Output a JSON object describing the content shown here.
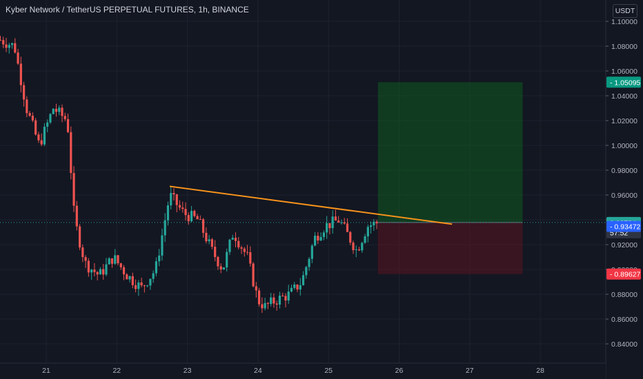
{
  "header": {
    "title": "Kyber Network / TetherUS PERPETUAL FUTURES, 1h, BINANCE",
    "currency": "USDT"
  },
  "chart_data": {
    "type": "candlestick",
    "y_ticks": [
      "1.10000",
      "1.08000",
      "1.06000",
      "1.04000",
      "1.02000",
      "1.00000",
      "0.98000",
      "0.96000",
      "0.94000",
      "0.92000",
      "0.90000",
      "0.88000",
      "0.86000",
      "0.84000"
    ],
    "y_tick_values": [
      1.1,
      1.08,
      1.06,
      1.04,
      1.02,
      1.0,
      0.98,
      0.96,
      0.94,
      0.92,
      0.9,
      0.88,
      0.86,
      0.84
    ],
    "ylim": [
      0.8325,
      1.1025
    ],
    "x_ticks": [
      "21",
      "22",
      "23",
      "24",
      "25",
      "26",
      "27",
      "28"
    ],
    "x_tick_days": [
      21,
      22,
      23,
      24,
      25,
      26,
      27,
      28
    ],
    "xlim": [
      20.35,
      28.8
    ],
    "price_tags": [
      {
        "label": "1.05095",
        "value": 1.05095,
        "color": "#089981"
      },
      {
        "label": "0.93784",
        "value": 0.93784,
        "color": "#26a69a"
      },
      {
        "label": "57:52",
        "value": 0.9296,
        "color": "#2e3442"
      },
      {
        "label": "0.93472",
        "value": 0.93472,
        "color": "#2962ff"
      },
      {
        "label": "0.89627",
        "value": 0.89627,
        "color": "#f23645"
      }
    ],
    "current_price": 0.93784,
    "trendline": {
      "x1": 22.75,
      "y1": 0.967,
      "x2": 26.75,
      "y2": 0.9365,
      "color": "#f7931a"
    },
    "position": {
      "x_start": 25.7,
      "x_end": 27.75,
      "entry": 0.93784,
      "target": 1.05095,
      "stop": 0.89627
    },
    "ohlc_anchors": [
      [
        20.35,
        1.085
      ],
      [
        20.55,
        1.08
      ],
      [
        20.72,
        1.03
      ],
      [
        20.9,
        1.0
      ],
      [
        21.1,
        1.03
      ],
      [
        21.3,
        1.02
      ],
      [
        21.4,
        0.94
      ],
      [
        21.55,
        0.905
      ],
      [
        21.75,
        0.895
      ],
      [
        21.95,
        0.91
      ],
      [
        22.15,
        0.895
      ],
      [
        22.35,
        0.885
      ],
      [
        22.55,
        0.9
      ],
      [
        22.75,
        0.96
      ],
      [
        22.95,
        0.945
      ],
      [
        23.15,
        0.94
      ],
      [
        23.35,
        0.915
      ],
      [
        23.5,
        0.9
      ],
      [
        23.65,
        0.93
      ],
      [
        23.85,
        0.91
      ],
      [
        24.0,
        0.875
      ],
      [
        24.1,
        0.87
      ],
      [
        24.25,
        0.875
      ],
      [
        24.45,
        0.88
      ],
      [
        24.62,
        0.89
      ],
      [
        24.8,
        0.925
      ],
      [
        24.95,
        0.935
      ],
      [
        25.15,
        0.94
      ],
      [
        25.25,
        0.93
      ],
      [
        25.4,
        0.915
      ],
      [
        25.55,
        0.935
      ],
      [
        25.7,
        0.93784
      ]
    ]
  }
}
